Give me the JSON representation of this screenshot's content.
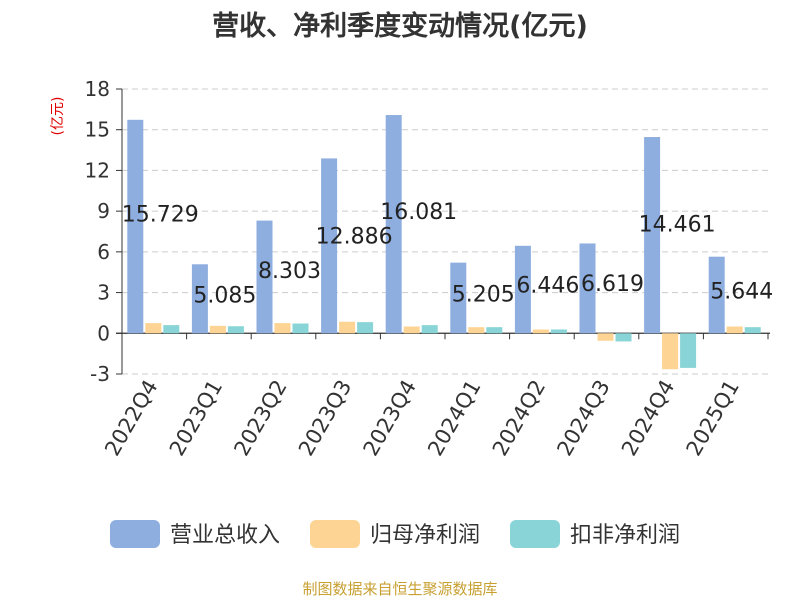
{
  "chart_data": {
    "type": "bar",
    "title": "营收、净利季度变动情况(亿元)",
    "ylabel": "(亿元)",
    "xlabel": "",
    "ylim": [
      -3,
      18
    ],
    "yticks": [
      -3,
      0,
      3,
      6,
      9,
      12,
      15,
      18
    ],
    "grid": true,
    "legend_position": "bottom",
    "categories": [
      "2022Q4",
      "2023Q1",
      "2023Q2",
      "2023Q3",
      "2023Q4",
      "2024Q1",
      "2024Q2",
      "2024Q3",
      "2024Q4",
      "2025Q1"
    ],
    "series": [
      {
        "name": "营业总收入",
        "color": "#8eaee0",
        "values": [
          15.729,
          5.085,
          8.303,
          12.886,
          16.081,
          5.205,
          6.446,
          6.619,
          14.461,
          5.644
        ]
      },
      {
        "name": "归母净利润",
        "color": "#fdd494",
        "values": [
          0.75,
          0.55,
          0.75,
          0.85,
          0.5,
          0.45,
          0.28,
          -0.55,
          -2.65,
          0.5
        ]
      },
      {
        "name": "扣非净利润",
        "color": "#88d4d6",
        "values": [
          0.6,
          0.52,
          0.72,
          0.82,
          0.6,
          0.45,
          0.28,
          -0.6,
          -2.55,
          0.45
        ]
      }
    ],
    "data_labels": [
      "15.729",
      "5.085",
      "8.303",
      "12.886",
      "16.081",
      "5.205",
      "6.446",
      "6.619",
      "14.461",
      "5.644"
    ]
  },
  "footer": {
    "source": "制图数据来自恒生聚源数据库"
  }
}
